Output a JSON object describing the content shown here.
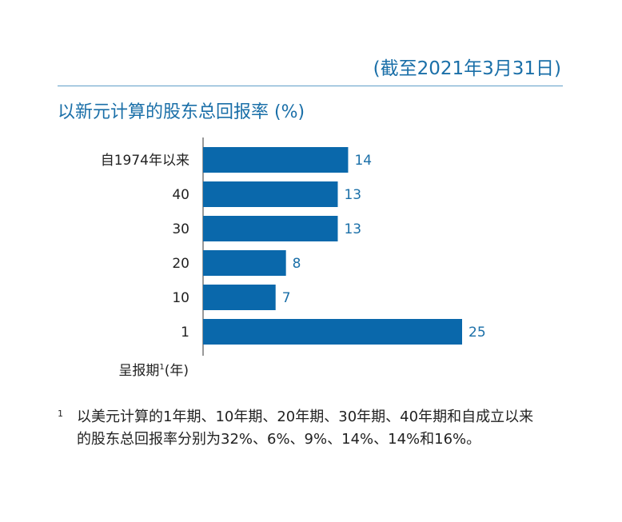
{
  "header": {
    "date_note": "(截至2021年3月31日)",
    "title": "以新元计算的股东总回报率 (%)"
  },
  "chart_data": {
    "type": "bar",
    "orientation": "horizontal",
    "categories": [
      "自1974年以来",
      "40",
      "30",
      "20",
      "10",
      "1"
    ],
    "values": [
      14,
      13,
      13,
      8,
      7,
      25
    ],
    "xlim": [
      0,
      25
    ],
    "ylabel": "呈报期",
    "ylabel_sup": "1",
    "ylabel_unit": "(年)",
    "bar_color": "#0a68ab",
    "label_color": "#1a6fa8",
    "grid": false
  },
  "footnote": {
    "marker": "1",
    "text": "以美元计算的1年期、10年期、20年期、30年期、40年期和自成立以来的股东总回报率分别为32%、6%、9%、14%、14%和16%。"
  }
}
